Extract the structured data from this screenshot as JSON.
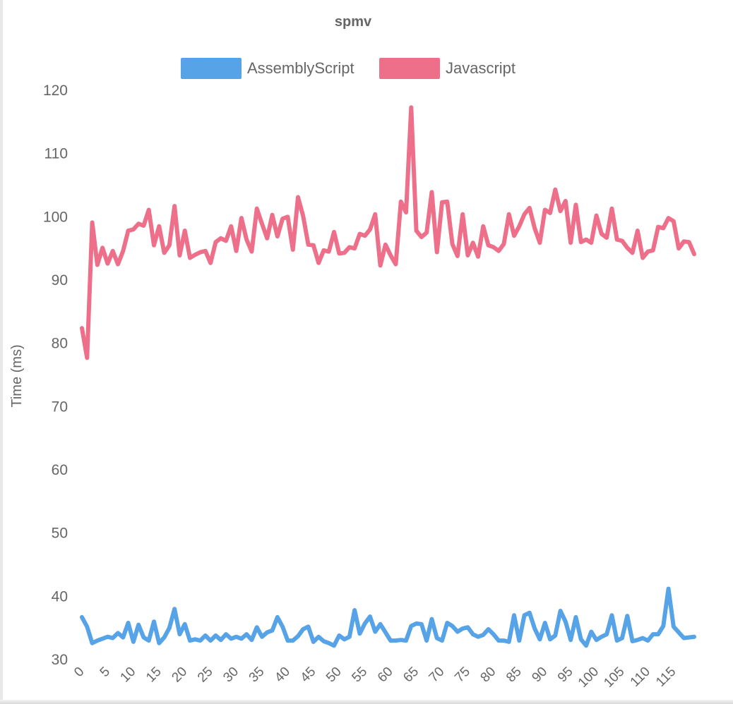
{
  "chart_data": {
    "type": "line",
    "title": "spmv",
    "xlabel": "",
    "ylabel": "Time (ms)",
    "ylim": [
      30,
      120
    ],
    "grid": false,
    "legend_position": "top",
    "x": [
      0,
      1,
      2,
      3,
      4,
      5,
      6,
      7,
      8,
      9,
      10,
      11,
      12,
      13,
      14,
      15,
      16,
      17,
      18,
      19,
      20,
      21,
      22,
      23,
      24,
      25,
      26,
      27,
      28,
      29,
      30,
      31,
      32,
      33,
      34,
      35,
      36,
      37,
      38,
      39,
      40,
      41,
      42,
      43,
      44,
      45,
      46,
      47,
      48,
      49,
      50,
      51,
      52,
      53,
      54,
      55,
      56,
      57,
      58,
      59,
      60,
      61,
      62,
      63,
      64,
      65,
      66,
      67,
      68,
      69,
      70,
      71,
      72,
      73,
      74,
      75,
      76,
      77,
      78,
      79,
      80,
      81,
      82,
      83,
      84,
      85,
      86,
      87,
      88,
      89,
      90,
      91,
      92,
      93,
      94,
      95,
      96,
      97,
      98,
      99,
      100,
      101,
      102,
      103,
      104,
      105,
      106,
      107,
      108,
      109,
      110,
      111,
      112,
      113,
      114,
      115,
      116,
      117,
      118,
      119
    ],
    "x_tick_labels": [
      "0",
      "5",
      "10",
      "15",
      "20",
      "25",
      "30",
      "35",
      "40",
      "45",
      "50",
      "55",
      "60",
      "65",
      "70",
      "75",
      "80",
      "85",
      "90",
      "95",
      "100",
      "105",
      "110",
      "115"
    ],
    "y_ticks": [
      30,
      40,
      50,
      60,
      70,
      80,
      90,
      100,
      110,
      120
    ],
    "series": [
      {
        "name": "AssemblyScript",
        "color": "#56a3e7",
        "values": [
          36.7,
          35.2,
          32.6,
          33,
          33.3,
          33.6,
          33.4,
          34.2,
          33.5,
          35.8,
          32.8,
          35.5,
          33.5,
          33,
          36,
          32.6,
          33.5,
          35,
          38,
          34,
          35.6,
          33,
          33.2,
          33,
          33.8,
          33,
          33.8,
          33.1,
          34,
          33.3,
          33.6,
          33.3,
          34,
          33.1,
          35.1,
          33.6,
          34.3,
          34.6,
          36.7,
          35.2,
          33,
          33,
          33.7,
          34.8,
          35.2,
          32.8,
          33.6,
          32.9,
          32.6,
          32.2,
          33.8,
          33.2,
          33.6,
          37.8,
          34.1,
          35.7,
          36.8,
          34.4,
          35.6,
          34.3,
          33,
          33,
          33.1,
          33,
          35.3,
          35.7,
          35.6,
          33,
          36.4,
          33.4,
          33,
          35.8,
          35.3,
          34.4,
          34.9,
          35.1,
          34,
          33.6,
          33.9,
          34.8,
          34,
          33,
          33,
          32.8,
          37,
          33,
          37,
          37.4,
          34.9,
          33.2,
          35.8,
          33.2,
          33.8,
          37.7,
          36,
          33.1,
          36.7,
          33.2,
          32.2,
          34.4,
          33.1,
          33.6,
          34,
          37,
          33,
          33.4,
          36.9,
          32.9,
          33.1,
          33.4,
          33,
          34,
          34,
          35.3,
          41.2,
          35.2,
          34.3,
          33.4,
          33.5,
          33.6
        ]
      },
      {
        "name": "Javascript",
        "color": "#ed6f89",
        "values": [
          82.4,
          77.7,
          99.1,
          92.4,
          95.1,
          92.6,
          94.6,
          92.5,
          94.6,
          97.8,
          98,
          98.9,
          98.6,
          101.1,
          95.5,
          98.5,
          94.3,
          95.5,
          101.7,
          93.9,
          97.8,
          93.5,
          94,
          94.4,
          94.6,
          92.7,
          96,
          96.6,
          96.2,
          98.5,
          94.6,
          99.8,
          96.4,
          94.5,
          101.3,
          98.9,
          96.6,
          100.3,
          96.9,
          99.7,
          100,
          94.8,
          103.1,
          100.1,
          95.6,
          95.5,
          92.7,
          94.7,
          94.5,
          97.6,
          94.2,
          94.3,
          95.2,
          95,
          97.3,
          97,
          98,
          100.4,
          92.3,
          95.6,
          93.9,
          92.5,
          102.4,
          100.7,
          117.3,
          97.8,
          96.8,
          97.5,
          103.9,
          94.4,
          102.3,
          102.4,
          95.7,
          93.8,
          100.4,
          93.9,
          95.9,
          93.7,
          98.5,
          95.5,
          95.2,
          94.6,
          95.7,
          100.4,
          97,
          98.5,
          100.4,
          101.4,
          98.2,
          95.9,
          101.1,
          100.6,
          104.3,
          100.9,
          102.5,
          95.9,
          101.9,
          96,
          96.4,
          95.9,
          100.2,
          97.3,
          96.7,
          101.3,
          96.4,
          96.2,
          95.1,
          94.3,
          97.8,
          93.5,
          94.5,
          94.7,
          98.4,
          98.2,
          99.8,
          99.3,
          95,
          96.1,
          96,
          94.1
        ]
      }
    ]
  }
}
